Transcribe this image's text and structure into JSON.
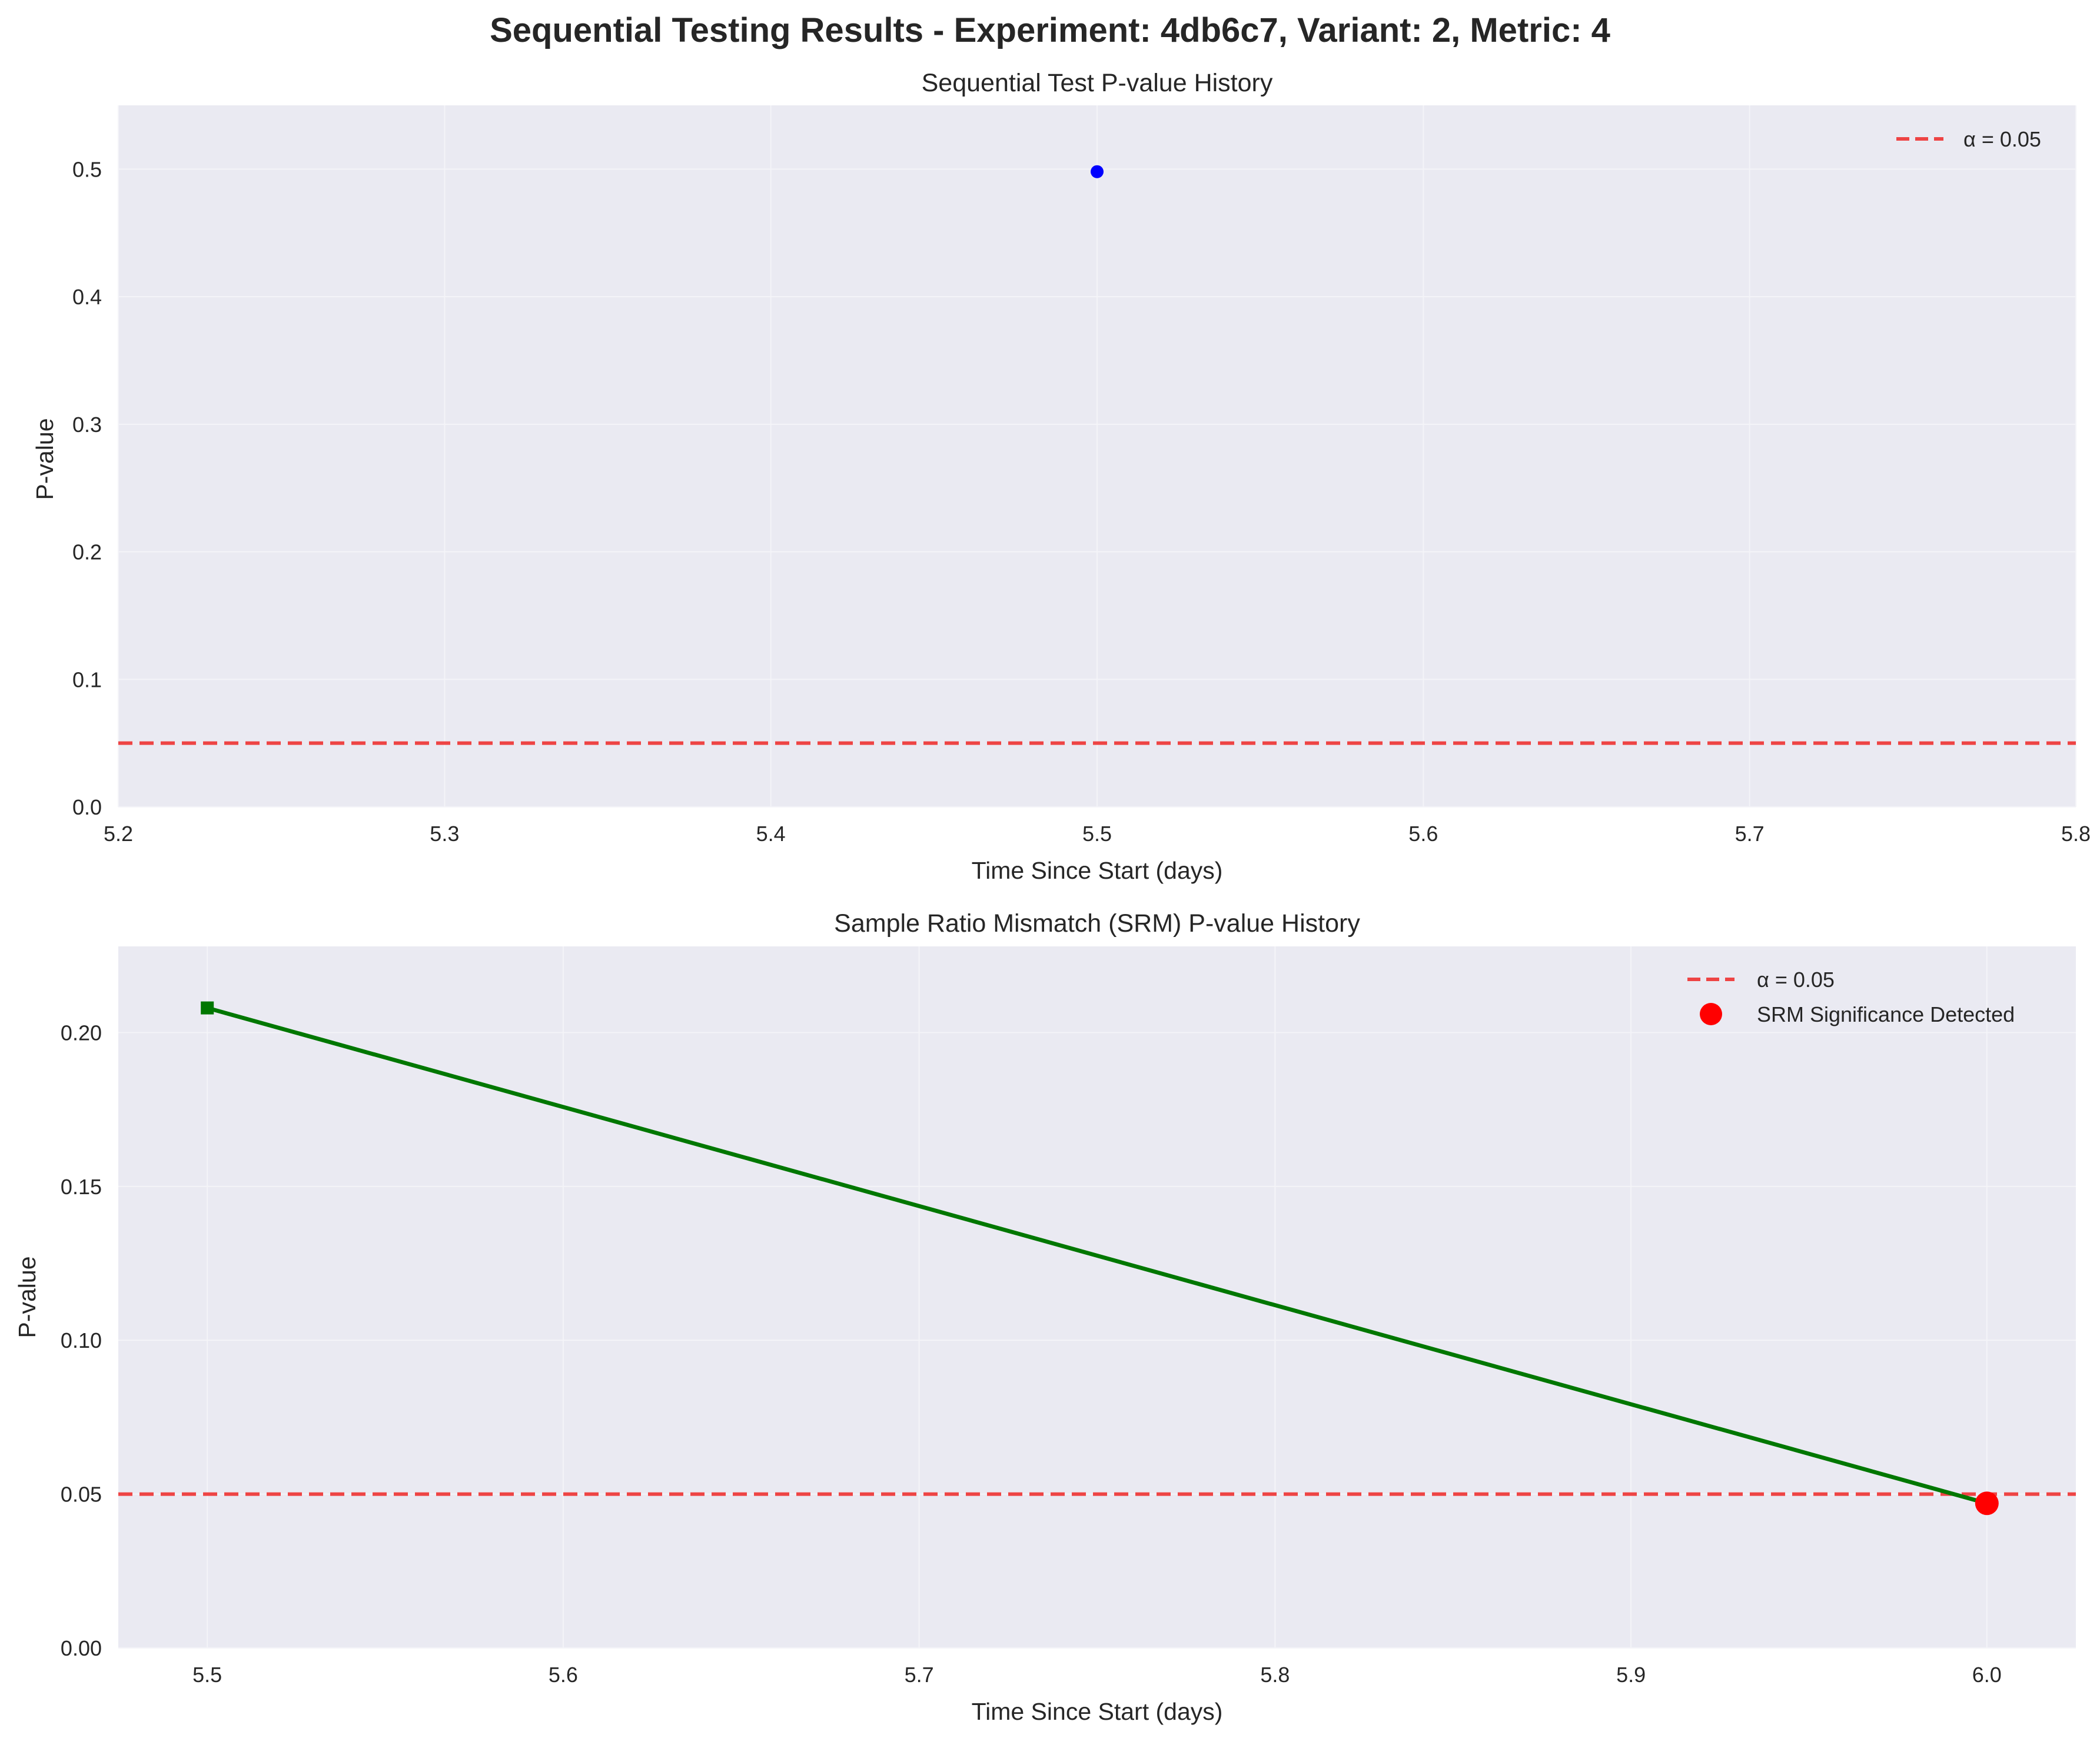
{
  "suptitle": "Sequential Testing Results - Experiment: 4db6c7, Variant: 2, Metric: 4",
  "colors": {
    "axes_bg": "#eaeaf2",
    "grid": "#f4f4f8",
    "alpha_line": "#ee4444",
    "seq_point": "#0000ff",
    "srm_line": "#007700",
    "srm_detect": "#ff0000"
  },
  "chart_data": [
    {
      "type": "scatter",
      "title": "Sequential Test P-value History",
      "xlabel": "Time Since Start (days)",
      "ylabel": "P-value",
      "xlim": [
        5.2,
        5.8
      ],
      "ylim": [
        0.0,
        0.55
      ],
      "xticks": [
        "5.2",
        "5.3",
        "5.4",
        "5.5",
        "5.6",
        "5.7",
        "5.8"
      ],
      "yticks": [
        "0.0",
        "0.1",
        "0.2",
        "0.3",
        "0.4",
        "0.5"
      ],
      "grid": true,
      "legend_position": "top-right",
      "series": [
        {
          "values": [
            {
              "x": 5.5,
              "y": 0.498
            }
          ],
          "marker": "circle"
        }
      ],
      "reference_lines": [
        {
          "name": "α = 0.05",
          "y": 0.05,
          "style": "dashed"
        }
      ]
    },
    {
      "type": "line",
      "title": "Sample Ratio Mismatch (SRM) P-value History",
      "xlabel": "Time Since Start (days)",
      "ylabel": "P-value",
      "xlim": [
        5.475,
        6.025
      ],
      "ylim": [
        0.0,
        0.228
      ],
      "xticks": [
        "5.5",
        "5.6",
        "5.7",
        "5.8",
        "5.9",
        "6.0"
      ],
      "yticks": [
        "0.00",
        "0.05",
        "0.10",
        "0.15",
        "0.20"
      ],
      "grid": true,
      "legend_position": "top-right",
      "series": [
        {
          "values": [
            {
              "x": 5.5,
              "y": 0.208
            },
            {
              "x": 6.0,
              "y": 0.047
            }
          ],
          "marker": "square"
        }
      ],
      "reference_lines": [
        {
          "name": "α = 0.05",
          "y": 0.05,
          "style": "dashed"
        }
      ],
      "highlights": [
        {
          "name": "SRM Significance Detected",
          "x": 6.0,
          "y": 0.047
        }
      ]
    }
  ]
}
